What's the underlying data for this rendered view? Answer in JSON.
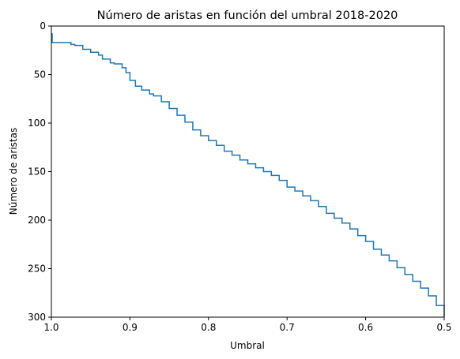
{
  "chart_data": {
    "type": "line",
    "title": "Número de aristas en función del umbral 2018-2020",
    "xlabel": "Umbral",
    "ylabel": "Número de aristas",
    "xlim": [
      1.0,
      0.5
    ],
    "ylim": [
      300,
      0
    ],
    "x_inverted": true,
    "y_inverted": true,
    "grid": false,
    "legend": "none",
    "xticks": [
      "1.0",
      "0.9",
      "0.8",
      "0.7",
      "0.6",
      "0.5"
    ],
    "xtick_values": [
      1.0,
      0.9,
      0.8,
      0.7,
      0.6,
      0.5
    ],
    "yticks": [
      "0",
      "50",
      "100",
      "150",
      "200",
      "250",
      "300"
    ],
    "ytick_values": [
      0,
      50,
      100,
      150,
      200,
      250,
      300
    ],
    "series": [
      {
        "color": "#1f77b4",
        "x": [
          1.0,
          0.999,
          0.98,
          0.975,
          0.97,
          0.96,
          0.95,
          0.94,
          0.935,
          0.925,
          0.92,
          0.91,
          0.905,
          0.9,
          0.893,
          0.885,
          0.875,
          0.87,
          0.86,
          0.85,
          0.84,
          0.83,
          0.82,
          0.81,
          0.8,
          0.79,
          0.78,
          0.77,
          0.76,
          0.75,
          0.74,
          0.73,
          0.72,
          0.71,
          0.7,
          0.69,
          0.68,
          0.67,
          0.66,
          0.65,
          0.64,
          0.63,
          0.62,
          0.61,
          0.6,
          0.59,
          0.58,
          0.57,
          0.56,
          0.55,
          0.54,
          0.53,
          0.52,
          0.51,
          0.5
        ],
        "y": [
          8,
          17,
          17,
          19,
          20,
          24,
          27,
          30,
          34,
          38,
          39,
          43,
          48,
          56,
          62,
          66,
          70,
          72,
          78,
          85,
          92,
          99,
          107,
          113,
          118,
          123,
          129,
          133,
          138,
          142,
          146,
          150,
          154,
          159,
          166,
          170,
          175,
          180,
          186,
          193,
          198,
          203,
          209,
          216,
          222,
          230,
          236,
          242,
          249,
          256,
          263,
          270,
          278,
          288,
          300
        ]
      }
    ]
  }
}
